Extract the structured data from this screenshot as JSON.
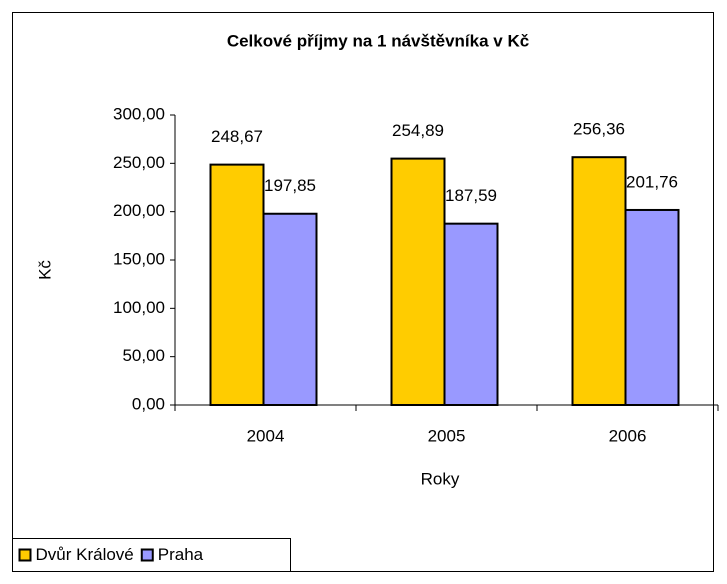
{
  "chart_data": {
    "type": "bar",
    "title": "Celkové příjmy na 1 návštěvníka v Kč",
    "x_label": "Roky",
    "y_label": "Kč",
    "categories": [
      "2004",
      "2005",
      "2006"
    ],
    "series": [
      {
        "name": "Dvůr Králové",
        "color": "#ffcc00",
        "values": [
          248.67,
          254.89,
          256.36
        ],
        "value_labels": [
          "248,67",
          "254,89",
          "256,36"
        ]
      },
      {
        "name": "Praha",
        "color": "#9999ff",
        "values": [
          197.85,
          187.59,
          201.76
        ],
        "value_labels": [
          "197,85",
          "187,59",
          "201,76"
        ]
      }
    ],
    "ylim": [
      0,
      300
    ],
    "yticks": [
      {
        "value": 0,
        "label": "0,00"
      },
      {
        "value": 50,
        "label": "50,00"
      },
      {
        "value": 100,
        "label": "100,00"
      },
      {
        "value": 150,
        "label": "150,00"
      },
      {
        "value": 200,
        "label": "200,00"
      },
      {
        "value": 250,
        "label": "250,00"
      },
      {
        "value": 300,
        "label": "300,00"
      }
    ],
    "grid": false,
    "legend": "bottom-left"
  }
}
